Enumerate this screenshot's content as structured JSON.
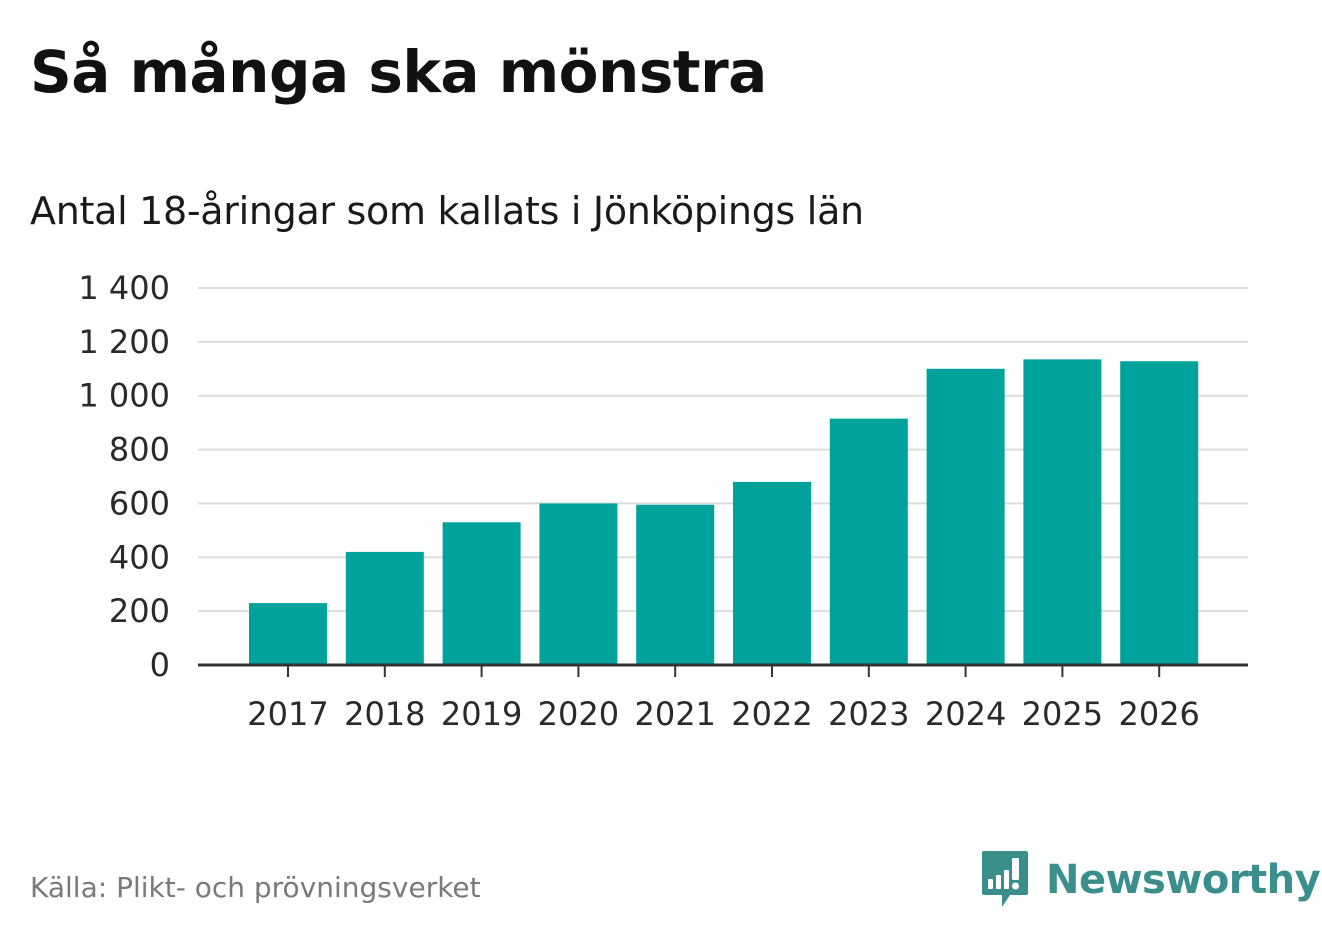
{
  "chart": {
    "title": "Så många ska mönstra",
    "subtitle": "Antal 18-åringar som kallats i Jönköpings län",
    "source": "Källa: Plikt- och prövningsverket"
  },
  "brand": {
    "name": "Newsworthy",
    "icon": "newsworthy-logo-icon",
    "color": "#3a8f8c"
  },
  "colors": {
    "bar": "#00a39b",
    "grid": "#dddddd",
    "axis": "#333333"
  },
  "chart_data": {
    "type": "bar",
    "title": "Så många ska mönstra",
    "subtitle": "Antal 18-åringar som kallats i Jönköpings län",
    "xlabel": "",
    "ylabel": "",
    "categories": [
      "2017",
      "2018",
      "2019",
      "2020",
      "2021",
      "2022",
      "2023",
      "2024",
      "2025",
      "2026"
    ],
    "values": [
      230,
      420,
      530,
      600,
      595,
      680,
      915,
      1100,
      1135,
      1128
    ],
    "ylim": [
      0,
      1400
    ],
    "yticks": [
      0,
      200,
      400,
      600,
      800,
      1000,
      1200,
      1400
    ],
    "ytick_labels": [
      "0",
      "200",
      "400",
      "600",
      "800",
      "1 000",
      "1 200",
      "1 400"
    ],
    "grid": true,
    "legend": "none"
  }
}
